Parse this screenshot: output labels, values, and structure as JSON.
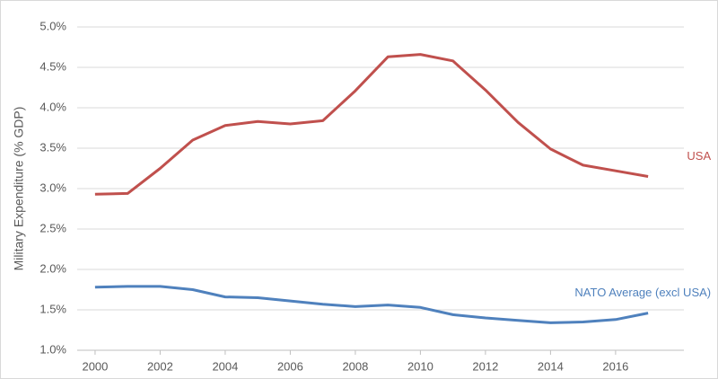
{
  "chart_data": {
    "type": "line",
    "y_label": "Military Expenditure (% GDP)",
    "x": [
      2000,
      2001,
      2002,
      2003,
      2004,
      2005,
      2006,
      2007,
      2008,
      2009,
      2010,
      2011,
      2012,
      2013,
      2014,
      2015,
      2016,
      2017
    ],
    "xlim": [
      1999.45,
      2018.1
    ],
    "xticks": [
      2000,
      2002,
      2004,
      2006,
      2008,
      2010,
      2012,
      2014,
      2016
    ],
    "ylim": [
      1.0,
      5.0
    ],
    "yticks": [
      {
        "value": 1.0,
        "label": "1.0%"
      },
      {
        "value": 1.5,
        "label": "1.5%"
      },
      {
        "value": 2.0,
        "label": "2.0%"
      },
      {
        "value": 2.5,
        "label": "2.5%"
      },
      {
        "value": 3.0,
        "label": "3.0%"
      },
      {
        "value": 3.5,
        "label": "3.5%"
      },
      {
        "value": 4.0,
        "label": "4.0%"
      },
      {
        "value": 4.5,
        "label": "4.5%"
      },
      {
        "value": 5.0,
        "label": "5.0%"
      }
    ],
    "grid": true,
    "series": [
      {
        "name": "USA",
        "color": "#c0504d",
        "values": [
          2.93,
          2.94,
          3.25,
          3.6,
          3.78,
          3.83,
          3.8,
          3.84,
          4.21,
          4.63,
          4.66,
          4.58,
          4.22,
          3.82,
          3.49,
          3.29,
          3.22,
          3.15
        ]
      },
      {
        "name": "NATO Average (excl USA)",
        "color": "#4f81bd",
        "values": [
          1.78,
          1.79,
          1.79,
          1.75,
          1.66,
          1.65,
          1.61,
          1.57,
          1.54,
          1.56,
          1.53,
          1.44,
          1.4,
          1.37,
          1.34,
          1.35,
          1.38,
          1.46
        ]
      }
    ]
  }
}
